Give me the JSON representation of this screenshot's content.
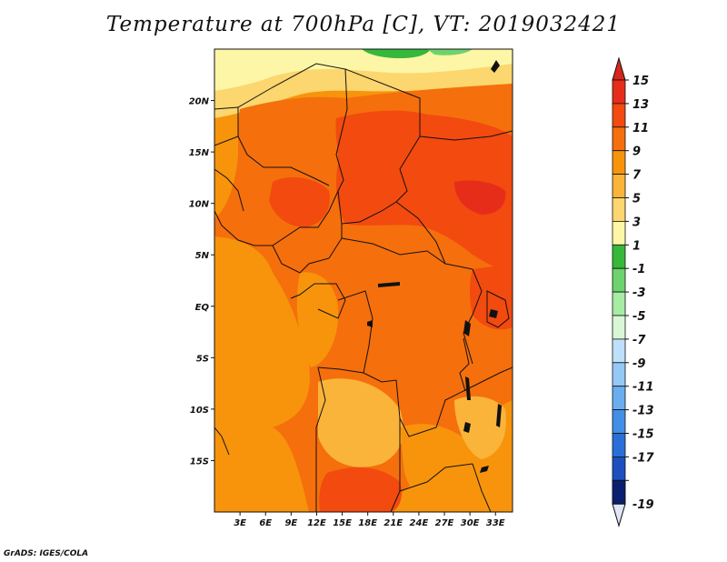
{
  "title": "Temperature at 700hPa [C], VT: 2019032421",
  "footer": "GrADS: IGES/COLA",
  "map": {
    "lon_range": [
      0,
      35
    ],
    "lat_range": [
      -20,
      25
    ],
    "lat_ticks": [
      {
        "value": 20,
        "label": "20N"
      },
      {
        "value": 15,
        "label": "15N"
      },
      {
        "value": 10,
        "label": "10N"
      },
      {
        "value": 5,
        "label": "5N"
      },
      {
        "value": 0,
        "label": "EQ"
      },
      {
        "value": -5,
        "label": "5S"
      },
      {
        "value": -10,
        "label": "10S"
      },
      {
        "value": -15,
        "label": "15S"
      }
    ],
    "lon_ticks": [
      {
        "value": 3,
        "label": "3E"
      },
      {
        "value": 6,
        "label": "6E"
      },
      {
        "value": 9,
        "label": "9E"
      },
      {
        "value": 12,
        "label": "12E"
      },
      {
        "value": 15,
        "label": "15E"
      },
      {
        "value": 18,
        "label": "18E"
      },
      {
        "value": 21,
        "label": "21E"
      },
      {
        "value": 24,
        "label": "24E"
      },
      {
        "value": 27,
        "label": "27E"
      },
      {
        "value": 30,
        "label": "30E"
      },
      {
        "value": 33,
        "label": "33E"
      }
    ]
  },
  "legend": {
    "levels": [
      {
        "label": "15",
        "color": "#e62d1a"
      },
      {
        "label": "13",
        "color": "#f24a0f"
      },
      {
        "label": "11",
        "color": "#f56f0c"
      },
      {
        "label": "9",
        "color": "#f7940c"
      },
      {
        "label": "7",
        "color": "#fab43a"
      },
      {
        "label": "5",
        "color": "#fcd66e"
      },
      {
        "label": "3",
        "color": "#fdf6a6"
      },
      {
        "label": "1",
        "color": "#36b83a"
      },
      {
        "label": "-1",
        "color": "#6dd36d"
      },
      {
        "label": "-3",
        "color": "#a6eca3"
      },
      {
        "label": "-5",
        "color": "#d9f7d6"
      },
      {
        "label": "-7",
        "color": "#bfe0fa"
      },
      {
        "label": "-9",
        "color": "#94c9f5"
      },
      {
        "label": "-11",
        "color": "#6aaef0"
      },
      {
        "label": "-13",
        "color": "#428fe6"
      },
      {
        "label": "-15",
        "color": "#2a6fd8"
      },
      {
        "label": "-17",
        "color": "#1e4fbf"
      },
      {
        "label": "-19",
        "color": "#12329c"
      }
    ],
    "bottom_color": "#0a1f70",
    "top_arrow_color": "#d8261a",
    "bottom_arrow_color": "#e0e6f7"
  }
}
